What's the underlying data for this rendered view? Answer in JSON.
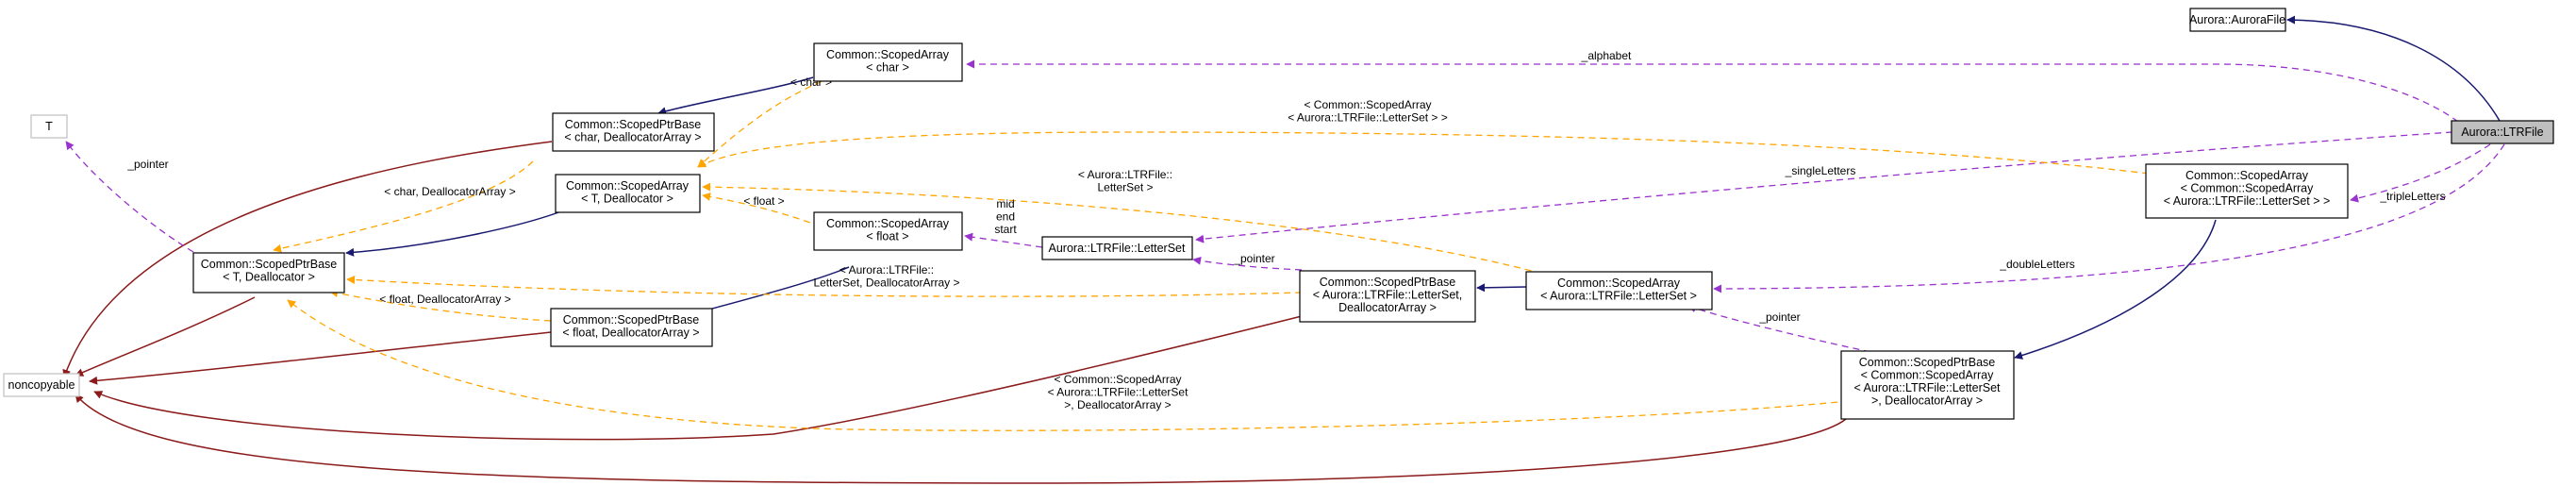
{
  "colors": {
    "inheritance": "#191970",
    "private_inheritance": "#8b1a1a",
    "usage": "#9a32cd",
    "template_instance": "#ffa500",
    "focus_fill": "#bfbfbf",
    "undocumented_border": "#bfbfbf"
  },
  "nodes": {
    "aurora_file": [
      "Aurora::AuroraFile"
    ],
    "ltr_file": [
      "Aurora::LTRFile"
    ],
    "scoped_array_char": [
      "Common::ScopedArray",
      "< char >"
    ],
    "t_param": [
      "T"
    ],
    "scoped_ptr_base_char": [
      "Common::ScopedPtrBase",
      "< char, DeallocatorArray >"
    ],
    "scoped_array_t": [
      "Common::ScopedArray",
      "< T, Deallocator >"
    ],
    "scoped_ptr_base_t": [
      "Common::ScopedPtrBase",
      "< T, Deallocator >"
    ],
    "scoped_array_float": [
      "Common::ScopedArray",
      "< float >"
    ],
    "letter_set": [
      "Aurora::LTRFile::LetterSet"
    ],
    "scoped_ptr_base_float": [
      "Common::ScopedPtrBase",
      "< float, DeallocatorArray >"
    ],
    "noncopyable": [
      "noncopyable"
    ],
    "scoped_ptr_base_letterset": [
      "Common::ScopedPtrBase",
      "< Aurora::LTRFile::LetterSet,",
      "DeallocatorArray >"
    ],
    "scoped_array_letterset": [
      "Common::ScopedArray",
      "< Aurora::LTRFile::LetterSet >"
    ],
    "scoped_array_scoped_array": [
      "Common::ScopedArray",
      "< Common::ScopedArray",
      "< Aurora::LTRFile::LetterSet > >"
    ],
    "scoped_ptr_base_scoped_array": [
      "Common::ScopedPtrBase",
      "< Common::ScopedArray",
      "< Aurora::LTRFile::LetterSet",
      ">, DeallocatorArray >"
    ]
  },
  "edge_labels": {
    "alphabet": [
      "_alphabet"
    ],
    "tmpl_char": [
      "< char >"
    ],
    "tmpl_char_dealloc": [
      "< char, DeallocatorArray >"
    ],
    "pointer_t": [
      "_pointer"
    ],
    "tmpl_scoped_array_letterset": [
      "< Common::ScopedArray",
      "< Aurora::LTRFile::LetterSet > >"
    ],
    "tmpl_letterset": [
      "< Aurora::LTRFile::",
      "LetterSet >"
    ],
    "tmpl_float": [
      "< float >"
    ],
    "single_letters": [
      "_singleLetters"
    ],
    "triple_letters": [
      "_tripleLetters"
    ],
    "mid_end_start": [
      "mid",
      "end",
      "start"
    ],
    "pointer_letterset": [
      "_pointer"
    ],
    "tmpl_letterset_dealloc": [
      "< Aurora::LTRFile::",
      "LetterSet, DeallocatorArray >"
    ],
    "double_letters": [
      "_doubleLetters"
    ],
    "tmpl_float_dealloc": [
      "< float, DeallocatorArray >"
    ],
    "pointer_scoped": [
      "_pointer"
    ],
    "tmpl_scoped_array_dealloc": [
      "< Common::ScopedArray",
      "< Aurora::LTRFile::LetterSet",
      ">, DeallocatorArray >"
    ]
  }
}
